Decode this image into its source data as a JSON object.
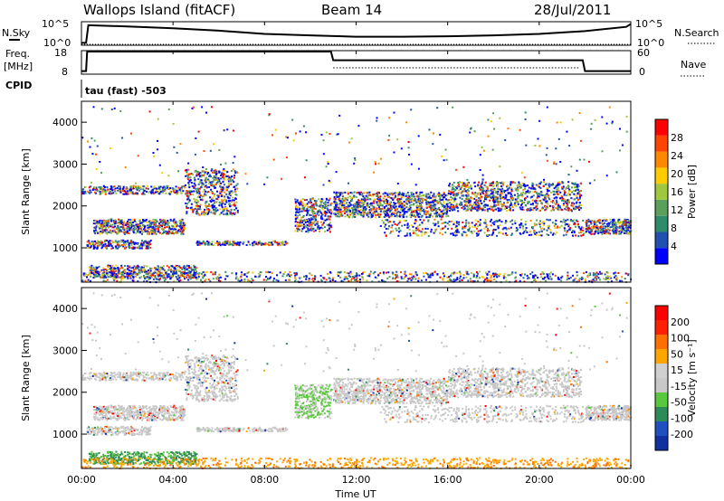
{
  "header": {
    "station": "Wallops Island (fitACF)",
    "beam": "Beam 14",
    "date": "28/Jul/2011"
  },
  "left_labels": {
    "nsky": "N.Sky",
    "freq_line1": "Freq.",
    "freq_line2": "[MHz]",
    "cpid": "CPID"
  },
  "right_labels": {
    "nsearch": "N.Search",
    "nave": "Nave"
  },
  "cpid_text": "tau (fast) -503",
  "colors": {
    "power": [
      "#0000ff",
      "#2050b0",
      "#2f8c6a",
      "#5aa05a",
      "#a0c83c",
      "#ffcc00",
      "#ff8800",
      "#ff4400",
      "#ff0000"
    ],
    "velocity": [
      "#1030a0",
      "#2050c0",
      "#2e8b57",
      "#5ac83c",
      "#c8c8c8",
      "#d0d0d0",
      "#ffa500",
      "#ff7000",
      "#ff2000",
      "#ff0000"
    ]
  },
  "chart_data": [
    {
      "type": "line",
      "name": "noise-panel",
      "x_unit": "hours UT",
      "y_left_ticks": [
        "10^5",
        "10^0"
      ],
      "y_right_ticks": [
        "10^5",
        "10^0"
      ],
      "series": [
        {
          "name": "N.Sky",
          "x": [
            0,
            0.2,
            0.3,
            2,
            4,
            6,
            8,
            10,
            12,
            14,
            16,
            18,
            20,
            22,
            23.8,
            24
          ],
          "y": [
            0.1,
            0.1,
            0.85,
            0.8,
            0.72,
            0.62,
            0.48,
            0.42,
            0.36,
            0.36,
            0.38,
            0.42,
            0.48,
            0.6,
            0.78,
            0.9
          ]
        },
        {
          "name": "N.Search",
          "x": [
            0,
            24
          ],
          "y": [
            0,
            0
          ]
        }
      ]
    },
    {
      "type": "line",
      "name": "frequency-panel",
      "y_left_ticks": [
        "18",
        "8"
      ],
      "y_right_ticks": [
        "60",
        "0"
      ],
      "series": [
        {
          "name": "Freq",
          "x": [
            0,
            0.2,
            0.25,
            10.9,
            11,
            21.9,
            22,
            24
          ],
          "y": [
            9,
            9,
            18,
            18,
            14,
            14,
            9,
            9
          ]
        },
        {
          "name": "Nave",
          "x": [
            11,
            21.8
          ],
          "y": [
            0,
            0
          ]
        }
      ]
    },
    {
      "type": "heatmap",
      "name": "power-panel",
      "ylabel": "Slant Range [km]",
      "yticks": [
        1000,
        2000,
        3000,
        4000
      ],
      "ylim": [
        180,
        4500
      ],
      "xlim": [
        0,
        24
      ],
      "colorbar_label": "Power [dB]",
      "colorbar_ticks": [
        "4",
        "8",
        "12",
        "16",
        "20",
        "24",
        "28"
      ]
    },
    {
      "type": "heatmap",
      "name": "velocity-panel",
      "ylabel": "Slant Range [km]",
      "yticks": [
        1000,
        2000,
        3000,
        4000
      ],
      "ylim": [
        180,
        4500
      ],
      "xlim": [
        0,
        24
      ],
      "colorbar_label": "Velocity [m s⁻¹]",
      "colorbar_ticks": [
        "-200",
        "-100",
        "-50",
        "-15",
        "15",
        "50",
        "100",
        "200"
      ]
    }
  ],
  "x_axis": {
    "ticks": [
      "00:00",
      "04:00",
      "08:00",
      "12:00",
      "16:00",
      "20:00",
      "00:00"
    ],
    "label": "Time UT"
  }
}
